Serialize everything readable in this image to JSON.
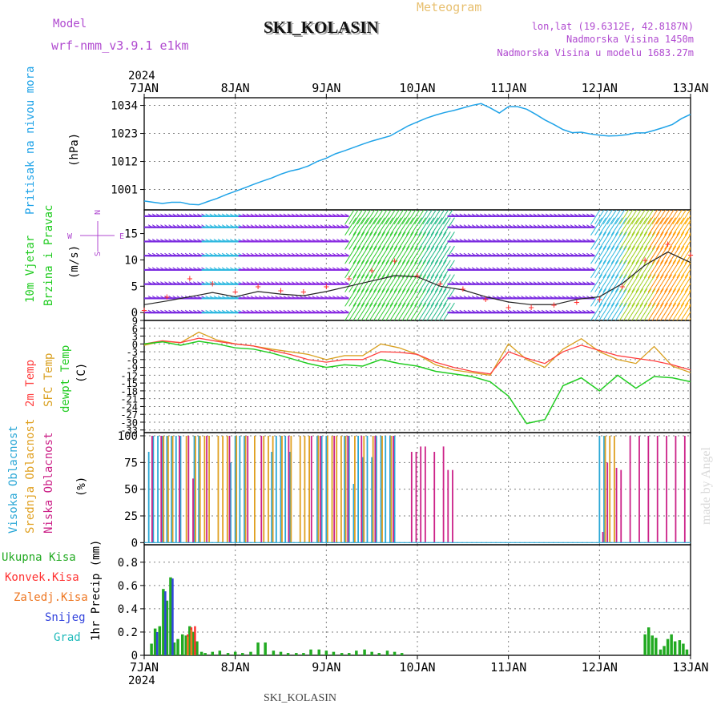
{
  "header": {
    "model_label": "Model",
    "model_name": "wrf-nmm_v3.9.1 e1km",
    "station_title": "SKI_KOLASIN",
    "meteogram_label": "Meteogram",
    "lonlat": "lon,lat (19.6312E, 42.8187N)",
    "altitude": "Nadmorska Visina 1450m",
    "model_altitude": "Nadmorska Visina u modelu 1683.27m",
    "watermark": "made by Angel",
    "footer_station": "SKI_KOLASIN"
  },
  "colors": {
    "pressure": "#1fa3e8",
    "temp2m": "#ff4040",
    "sfc": "#d9a020",
    "dew": "#22cc22",
    "high_cloud": "#2aa7d6",
    "mid_cloud": "#e0a020",
    "low_cloud": "#cc2288",
    "total_precip": "#22aa22",
    "conv_precip": "#ff3030",
    "frozen_precip": "#ee7722",
    "snow": "#3344dd",
    "hail": "#22bbbb",
    "model_text": "#b04ad0",
    "grid": "#808080"
  },
  "chart_data": [
    {
      "type": "line",
      "panel": "pressure",
      "ylabel": [
        "Pritisak na nivou mora",
        "(hPa)"
      ],
      "year_label": "2024",
      "x_ticks": [
        "7JAN",
        "8JAN",
        "9JAN",
        "10JAN",
        "11JAN",
        "12JAN",
        "13JAN"
      ],
      "yticks": [
        1001,
        1012,
        1023,
        1034
      ],
      "ylim": [
        993,
        1037
      ],
      "x": [
        0,
        0.1,
        0.2,
        0.3,
        0.4,
        0.5,
        0.6,
        0.7,
        0.8,
        0.9,
        1.0,
        1.1,
        1.2,
        1.3,
        1.4,
        1.5,
        1.6,
        1.7,
        1.8,
        1.9,
        2.0,
        2.1,
        2.2,
        2.3,
        2.4,
        2.5,
        2.6,
        2.7,
        2.8,
        2.9,
        3.0,
        3.1,
        3.2,
        3.3,
        3.4,
        3.5,
        3.6,
        3.7,
        3.8,
        3.9,
        4.0,
        4.1,
        4.2,
        4.3,
        4.4,
        4.5,
        4.6,
        4.7,
        4.8,
        4.9,
        5.0,
        5.1,
        5.2,
        5.3,
        5.4,
        5.5,
        5.6,
        5.7,
        5.8,
        5.9,
        6.0
      ],
      "series": [
        {
          "values": [
            996.5,
            996.0,
            995.5,
            996.0,
            996.0,
            995.2,
            995.0,
            996.3,
            997.5,
            999.0,
            1000.3,
            1001.6,
            1003.0,
            1004.3,
            1005.5,
            1007.0,
            1008.2,
            1009.0,
            1010.2,
            1012.0,
            1013.3,
            1015.0,
            1016.2,
            1017.5,
            1018.8,
            1020.0,
            1021.0,
            1022.0,
            1024.0,
            1026.0,
            1027.5,
            1029.0,
            1030.2,
            1031.2,
            1032.0,
            1033.0,
            1034.0,
            1034.7,
            1033.0,
            1031.0,
            1033.5,
            1033.5,
            1032.5,
            1030.5,
            1028.3,
            1026.5,
            1024.5,
            1023.3,
            1023.5,
            1022.8,
            1022.3,
            1022.0,
            1022.1,
            1022.5,
            1023.2,
            1023.2,
            1024.2,
            1025.3,
            1026.5,
            1028.8,
            1030.5
          ]
        }
      ]
    },
    {
      "type": "line",
      "panel": "wind",
      "ylabel": [
        "10m Vjetar",
        "Brzina i Pravac",
        "(m/s)"
      ],
      "compass": [
        "N",
        "E",
        "S",
        "W"
      ],
      "yticks": [
        0,
        5,
        10,
        15
      ],
      "ylim": [
        -1.5,
        19.5
      ],
      "x": [
        0,
        0.25,
        0.5,
        0.75,
        1.0,
        1.25,
        1.5,
        1.75,
        2.0,
        2.25,
        2.5,
        2.75,
        3.0,
        3.25,
        3.5,
        3.75,
        4.0,
        4.25,
        4.5,
        4.75,
        5.0,
        5.25,
        5.5,
        5.75,
        6.0
      ],
      "series": [
        {
          "name": "speed",
          "values": [
            1.5,
            2.2,
            3.0,
            3.8,
            3.0,
            4.0,
            3.5,
            3.2,
            4.0,
            5.0,
            6.0,
            7.0,
            6.8,
            5.0,
            4.3,
            3.0,
            2.0,
            1.5,
            1.5,
            2.5,
            3.0,
            5.5,
            9.0,
            11.5,
            9.5
          ]
        },
        {
          "name": "gust",
          "values": [
            0.5,
            3.0,
            6.5,
            5.5,
            4.0,
            5.0,
            4.2,
            4.0,
            5.0,
            6.5,
            8.0,
            9.8,
            7.0,
            5.5,
            4.5,
            2.5,
            1.0,
            1.0,
            1.5,
            2.0,
            2.5,
            5.0,
            10.0,
            13.0,
            11.0
          ]
        }
      ]
    },
    {
      "type": "line",
      "panel": "temperature",
      "ylabel": [
        "2m Temp",
        "SFC Temp",
        "dewpt Temp",
        "(C)"
      ],
      "yticks": [
        -33,
        -30,
        -27,
        -24,
        -21,
        -18,
        -15,
        -12,
        -9,
        -6,
        -3,
        0,
        3,
        6,
        9
      ],
      "ylim": [
        -34,
        9
      ],
      "x": [
        0,
        0.2,
        0.4,
        0.6,
        0.8,
        1.0,
        1.2,
        1.4,
        1.6,
        1.8,
        2.0,
        2.2,
        2.4,
        2.6,
        2.8,
        3.0,
        3.2,
        3.4,
        3.6,
        3.8,
        4.0,
        4.2,
        4.4,
        4.6,
        4.8,
        5.0,
        5.2,
        5.4,
        5.6,
        5.8,
        6.0
      ],
      "series": [
        {
          "name": "2m Temp",
          "values": [
            0.0,
            1.2,
            0.5,
            2.2,
            1.0,
            0.0,
            -0.8,
            -2.5,
            -4.0,
            -6.0,
            -7.0,
            -6.0,
            -6.0,
            -3.0,
            -3.2,
            -4.0,
            -7.0,
            -9.0,
            -10.5,
            -11.5,
            -3.0,
            -5.5,
            -7.5,
            -3.0,
            -0.5,
            -2.5,
            -4.5,
            -5.5,
            -6.5,
            -8.0,
            -10.0
          ]
        },
        {
          "name": "SFC Temp",
          "values": [
            -0.5,
            1.0,
            0.5,
            4.5,
            1.5,
            0.0,
            -0.8,
            -2.0,
            -3.0,
            -4.0,
            -6.0,
            -4.5,
            -4.5,
            0.0,
            -1.5,
            -4.0,
            -8.0,
            -10.0,
            -11.0,
            -12.0,
            0.0,
            -6.0,
            -9.0,
            -2.0,
            2.0,
            -3.0,
            -6.0,
            -7.5,
            -1.0,
            -8.5,
            -11.0
          ]
        },
        {
          "name": "dewpt Temp",
          "values": [
            0.0,
            0.8,
            -0.5,
            1.0,
            0.0,
            -1.5,
            -2.0,
            -3.5,
            -5.5,
            -7.5,
            -9.0,
            -8.0,
            -8.5,
            -6.0,
            -7.5,
            -8.5,
            -10.5,
            -11.5,
            -12.5,
            -14.5,
            -20.0,
            -30.5,
            -29.0,
            -16.0,
            -13.0,
            -18.0,
            -12.0,
            -17.0,
            -12.5,
            -13.0,
            -14.5
          ]
        }
      ]
    },
    {
      "type": "bar",
      "panel": "clouds",
      "ylabel": [
        "Visoka Oblacnost",
        "Srednja Oblacnost",
        "Niska Oblacnost",
        "(%)"
      ],
      "yticks": [
        0,
        25,
        50,
        75,
        100
      ],
      "ylim": [
        -2,
        103
      ],
      "series": [
        {
          "name": "Visoka Oblacnost",
          "x": [
            0.05,
            0.1,
            0.15,
            0.2,
            0.25,
            0.3,
            0.35,
            0.4,
            0.55,
            0.6,
            0.95,
            1.0,
            1.05,
            1.1,
            1.4,
            1.45,
            1.5,
            1.55,
            1.6,
            1.9,
            1.95,
            2.0,
            2.2,
            2.25,
            2.3,
            2.35,
            2.4,
            2.45,
            2.5,
            2.55,
            2.6,
            2.65,
            2.7,
            2.75,
            5.0,
            5.05
          ],
          "values": [
            85,
            100,
            100,
            100,
            100,
            100,
            100,
            100,
            100,
            100,
            75,
            100,
            100,
            100,
            85,
            100,
            100,
            100,
            85,
            100,
            100,
            100,
            100,
            100,
            55,
            100,
            80,
            100,
            80,
            100,
            100,
            100,
            100,
            100,
            100,
            100
          ]
        },
        {
          "name": "Srednja Oblacnost",
          "x": [
            0.2,
            0.25,
            0.3,
            0.45,
            0.55,
            0.6,
            0.65,
            0.7,
            0.8,
            0.85,
            0.9,
            1.0,
            1.1,
            1.2,
            1.3,
            1.35,
            1.4,
            1.5,
            1.6,
            1.7,
            1.75,
            1.8,
            1.9,
            2.0,
            2.05,
            2.1,
            2.15,
            2.2,
            2.3,
            2.4,
            2.5,
            2.6,
            2.7,
            5.05,
            5.1,
            5.15
          ],
          "values": [
            100,
            100,
            100,
            100,
            100,
            100,
            100,
            100,
            100,
            100,
            100,
            100,
            100,
            100,
            100,
            100,
            100,
            100,
            100,
            100,
            100,
            100,
            100,
            100,
            100,
            100,
            100,
            100,
            100,
            100,
            100,
            100,
            100,
            100,
            100,
            100
          ]
        },
        {
          "name": "Niska Oblacnost",
          "x": [
            0.1,
            0.2,
            0.4,
            0.5,
            0.55,
            0.7,
            0.95,
            1.15,
            1.3,
            1.6,
            1.85,
            1.95,
            2.1,
            2.25,
            2.4,
            2.55,
            2.75,
            2.95,
            3.0,
            3.05,
            3.1,
            3.2,
            3.3,
            3.35,
            3.4,
            5.05,
            5.1,
            5.2,
            5.25,
            5.35,
            5.45,
            5.55,
            5.65,
            5.75,
            5.85,
            5.95
          ],
          "values": [
            100,
            100,
            100,
            100,
            60,
            100,
            100,
            100,
            100,
            100,
            100,
            100,
            100,
            100,
            100,
            100,
            100,
            85,
            85,
            90,
            90,
            85,
            90,
            68,
            68,
            10,
            75,
            70,
            68,
            100,
            100,
            100,
            100,
            100,
            100,
            100
          ]
        }
      ]
    },
    {
      "type": "bar",
      "panel": "precipitation",
      "ylabel": [
        "1hr Precip (mm)"
      ],
      "legend": [
        "Ukupna Kisa",
        "Konvek.Kisa",
        "Zaledj.Kisa",
        "Snijeg",
        "Grad"
      ],
      "yticks": [
        0,
        0.2,
        0.4,
        0.6,
        0.8
      ],
      "ylim": [
        0,
        0.95
      ],
      "x_ticks": [
        "7JAN",
        "8JAN",
        "9JAN",
        "10JAN",
        "11JAN",
        "12JAN",
        "13JAN"
      ],
      "year_label": "2024",
      "series": [
        {
          "name": "Ukupna Kisa",
          "x": [
            0.08,
            0.12,
            0.17,
            0.21,
            0.25,
            0.29,
            0.33,
            0.37,
            0.42,
            0.46,
            0.5,
            0.54,
            0.58,
            0.63,
            0.67,
            0.75,
            0.83,
            0.92,
            1.0,
            1.08,
            1.17,
            1.25,
            1.33,
            1.42,
            1.5,
            1.58,
            1.67,
            1.75,
            1.83,
            1.92,
            2.0,
            2.08,
            2.17,
            2.25,
            2.33,
            2.42,
            2.5,
            2.58,
            2.67,
            2.75,
            2.83,
            5.5,
            5.54,
            5.58,
            5.62,
            5.67,
            5.71,
            5.75,
            5.79,
            5.83,
            5.88,
            5.92,
            5.96
          ],
          "values": [
            0.1,
            0.23,
            0.25,
            0.57,
            0.47,
            0.67,
            0.11,
            0.14,
            0.18,
            0.17,
            0.25,
            0.2,
            0.12,
            0.03,
            0.02,
            0.03,
            0.04,
            0.02,
            0.03,
            0.02,
            0.03,
            0.11,
            0.11,
            0.04,
            0.03,
            0.02,
            0.02,
            0.02,
            0.05,
            0.05,
            0.04,
            0.03,
            0.02,
            0.02,
            0.04,
            0.05,
            0.03,
            0.02,
            0.04,
            0.03,
            0.02,
            0.18,
            0.24,
            0.17,
            0.15,
            0.05,
            0.08,
            0.14,
            0.18,
            0.12,
            0.13,
            0.1,
            0.05
          ]
        },
        {
          "name": "Konvek.Kisa",
          "x": [
            0.5,
            0.54,
            0.58
          ],
          "values": [
            0.18,
            0.24,
            0.25
          ]
        },
        {
          "name": "Zaledj.Kisa",
          "x": [
            0.5,
            0.54
          ],
          "values": [
            0.16,
            0.22
          ]
        },
        {
          "name": "Snijeg",
          "x": [
            0.12,
            0.21,
            0.29
          ],
          "values": [
            0.2,
            0.55,
            0.66
          ]
        },
        {
          "name": "Grad",
          "x": [],
          "values": []
        }
      ]
    }
  ]
}
